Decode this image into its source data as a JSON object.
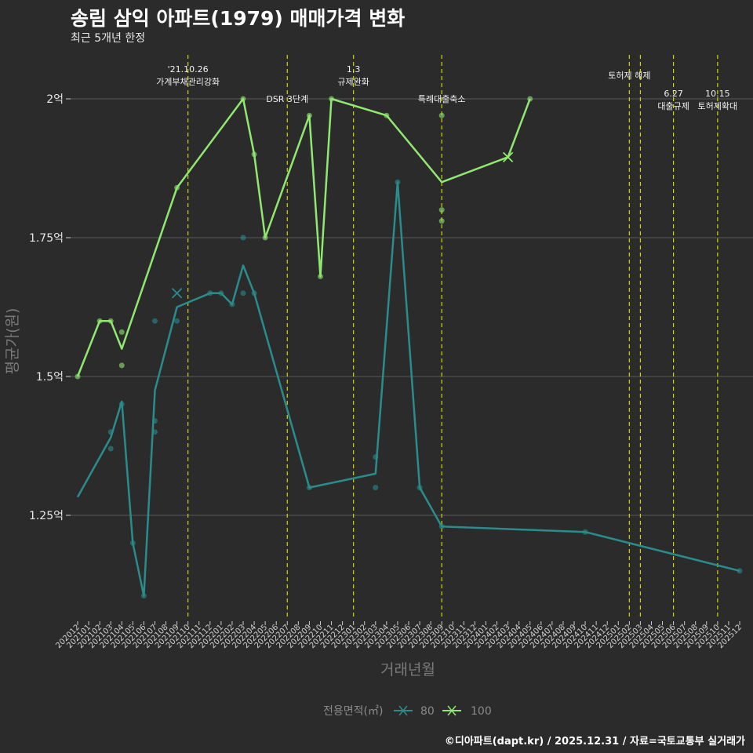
{
  "title": "송림 삼익 아파트(1979) 매매가격 변화",
  "subtitle": "최근 5개년 한정",
  "caption": "©디아파트(dapt.kr) / 2025.12.31 / 자료=국토교통부 실거래가",
  "colors": {
    "background": "#2b2b2b",
    "grid": "#5a5a5a",
    "event_line": "#d4d400",
    "series_80": "#2a8c8c",
    "series_100": "#90e870"
  },
  "chart_data": {
    "type": "line",
    "title": "송림 삼익 아파트(1979) 매매가격 변화",
    "xlabel": "거래년월",
    "ylabel": "평균가(원)",
    "ylim": [
      1.04,
      2.08
    ],
    "y_ticks": [
      {
        "value": 1.25,
        "label": "1.25억"
      },
      {
        "value": 1.5,
        "label": "1.5억"
      },
      {
        "value": 1.75,
        "label": "1.75억"
      },
      {
        "value": 2.0,
        "label": "2억"
      }
    ],
    "categories": [
      "202012",
      "202101",
      "202102",
      "202103",
      "202104",
      "202105",
      "202106",
      "202107",
      "202108",
      "202109",
      "202110",
      "202111",
      "202112",
      "202201",
      "202202",
      "202203",
      "202204",
      "202205",
      "202206",
      "202207",
      "202208",
      "202209",
      "202210",
      "202211",
      "202212",
      "202301",
      "202302",
      "202303",
      "202304",
      "202305",
      "202306",
      "202307",
      "202308",
      "202309",
      "202310",
      "202311",
      "202312",
      "202401",
      "202402",
      "202403",
      "202404",
      "202405",
      "202406",
      "202407",
      "202408",
      "202409",
      "202410",
      "202411",
      "202412",
      "202501",
      "202502",
      "202503",
      "202504",
      "202505",
      "202506",
      "202507",
      "202508",
      "202509",
      "202510",
      "202511",
      "202512"
    ],
    "legend_title": "전용면적(㎡)",
    "events": [
      {
        "x": "202110",
        "label": "'21.10.26\n가계부채관리강화",
        "row": 0
      },
      {
        "x": "202207",
        "label": "DSR 3단계",
        "row": 2
      },
      {
        "x": "202301",
        "label": "1.3\n규제완화",
        "row": 0
      },
      {
        "x": "202309",
        "label": "특례대출축소",
        "row": 2
      },
      {
        "x": "202502",
        "label": "토허제 해제",
        "row": 1
      },
      {
        "x": "202503",
        "label": "",
        "row": 1
      },
      {
        "x": "202506",
        "label": "6.27\n대출규제",
        "row": 3
      },
      {
        "x": "202510",
        "label": "10.15\n토허제확대",
        "row": 3
      }
    ],
    "series": [
      {
        "name": "80",
        "line": [
          [
            "202012",
            1.283
          ],
          [
            "202103",
            1.39
          ],
          [
            "202104",
            1.455
          ],
          [
            "202105",
            1.2
          ],
          [
            "202106",
            1.105
          ],
          [
            "202107",
            1.475
          ],
          [
            "202109",
            1.625
          ],
          [
            "202112",
            1.65
          ],
          [
            "202201",
            1.65
          ],
          [
            "202202",
            1.63
          ],
          [
            "202203",
            1.7
          ],
          [
            "202204",
            1.65
          ],
          [
            "202209",
            1.3
          ],
          [
            "202303",
            1.325
          ],
          [
            "202305",
            1.85
          ],
          [
            "202307",
            1.3
          ],
          [
            "202309",
            1.23
          ],
          [
            "202410",
            1.22
          ],
          [
            "202512",
            1.15
          ]
        ],
        "points": [
          [
            "202103",
            1.4
          ],
          [
            "202103",
            1.37
          ],
          [
            "202104",
            1.45
          ],
          [
            "202105",
            1.2
          ],
          [
            "202106",
            1.105
          ],
          [
            "202107",
            1.6
          ],
          [
            "202107",
            1.42
          ],
          [
            "202107",
            1.4
          ],
          [
            "202109",
            1.6
          ],
          [
            "202112",
            1.65
          ],
          [
            "202201",
            1.65
          ],
          [
            "202202",
            1.63
          ],
          [
            "202203",
            1.75
          ],
          [
            "202203",
            1.65
          ],
          [
            "202204",
            1.65
          ],
          [
            "202209",
            1.3
          ],
          [
            "202303",
            1.355
          ],
          [
            "202303",
            1.3
          ],
          [
            "202305",
            1.85
          ],
          [
            "202307",
            1.3
          ],
          [
            "202309",
            1.23
          ],
          [
            "202410",
            1.22
          ],
          [
            "202512",
            1.15
          ]
        ],
        "cross": [
          [
            "202109",
            1.65
          ]
        ]
      },
      {
        "name": "100",
        "line": [
          [
            "202012",
            1.5
          ],
          [
            "202102",
            1.6
          ],
          [
            "202103",
            1.6
          ],
          [
            "202104",
            1.55
          ],
          [
            "202109",
            1.84
          ],
          [
            "202203",
            2.0
          ],
          [
            "202204",
            1.9
          ],
          [
            "202205",
            1.75
          ],
          [
            "202209",
            1.97
          ],
          [
            "202210",
            1.68
          ],
          [
            "202211",
            2.0
          ],
          [
            "202304",
            1.97
          ],
          [
            "202309",
            1.85
          ],
          [
            "202403",
            1.895
          ],
          [
            "202405",
            2.0
          ]
        ],
        "points": [
          [
            "202012",
            1.5
          ],
          [
            "202102",
            1.6
          ],
          [
            "202103",
            1.6
          ],
          [
            "202104",
            1.58
          ],
          [
            "202104",
            1.52
          ],
          [
            "202109",
            1.84
          ],
          [
            "202203",
            2.0
          ],
          [
            "202204",
            1.9
          ],
          [
            "202205",
            1.75
          ],
          [
            "202209",
            1.97
          ],
          [
            "202210",
            1.68
          ],
          [
            "202211",
            2.0
          ],
          [
            "202304",
            1.97
          ],
          [
            "202309",
            1.97
          ],
          [
            "202309",
            1.8
          ],
          [
            "202309",
            1.78
          ],
          [
            "202405",
            2.0
          ]
        ],
        "cross": [
          [
            "202403",
            1.895
          ]
        ]
      }
    ]
  }
}
